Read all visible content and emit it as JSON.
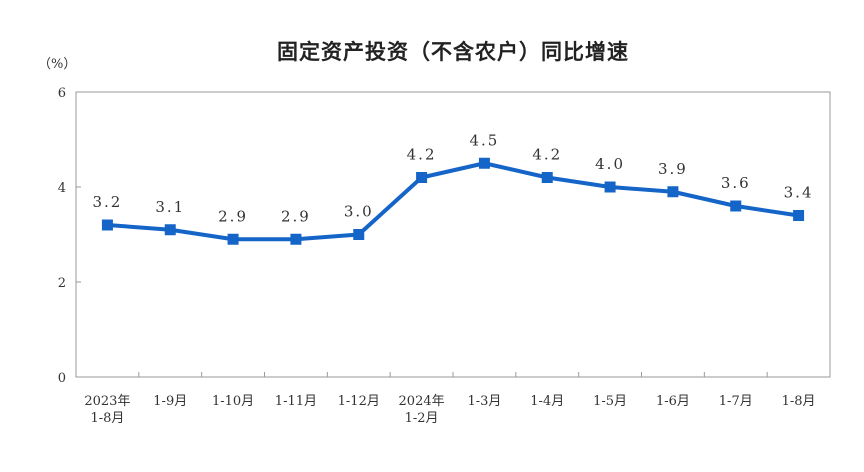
{
  "chart_data": {
    "type": "line",
    "title": "固定资产投资（不含农户）同比增速",
    "unit": "（%）",
    "categories": [
      [
        "2023年",
        "1-8月"
      ],
      [
        "1-9月"
      ],
      [
        "1-10月"
      ],
      [
        "1-11月"
      ],
      [
        "1-12月"
      ],
      [
        "2024年",
        "1-2月"
      ],
      [
        "1-3月"
      ],
      [
        "1-4月"
      ],
      [
        "1-5月"
      ],
      [
        "1-6月"
      ],
      [
        "1-7月"
      ],
      [
        "1-8月"
      ]
    ],
    "values": [
      3.2,
      3.1,
      2.9,
      2.9,
      3.0,
      4.2,
      4.5,
      4.2,
      4.0,
      3.9,
      3.6,
      3.4
    ],
    "value_labels": [
      "3.2",
      "3.1",
      "2.9",
      "2.9",
      "3.0",
      "4.2",
      "4.5",
      "4.2",
      "4.0",
      "3.9",
      "3.6",
      "3.4"
    ],
    "ylim": [
      0,
      6
    ],
    "yticks": [
      0,
      2,
      4,
      6
    ],
    "grid": false,
    "legend": "none",
    "colors": {
      "line": "#1565c8",
      "marker": "#1565c8",
      "axis": "#9a9a9a"
    }
  }
}
